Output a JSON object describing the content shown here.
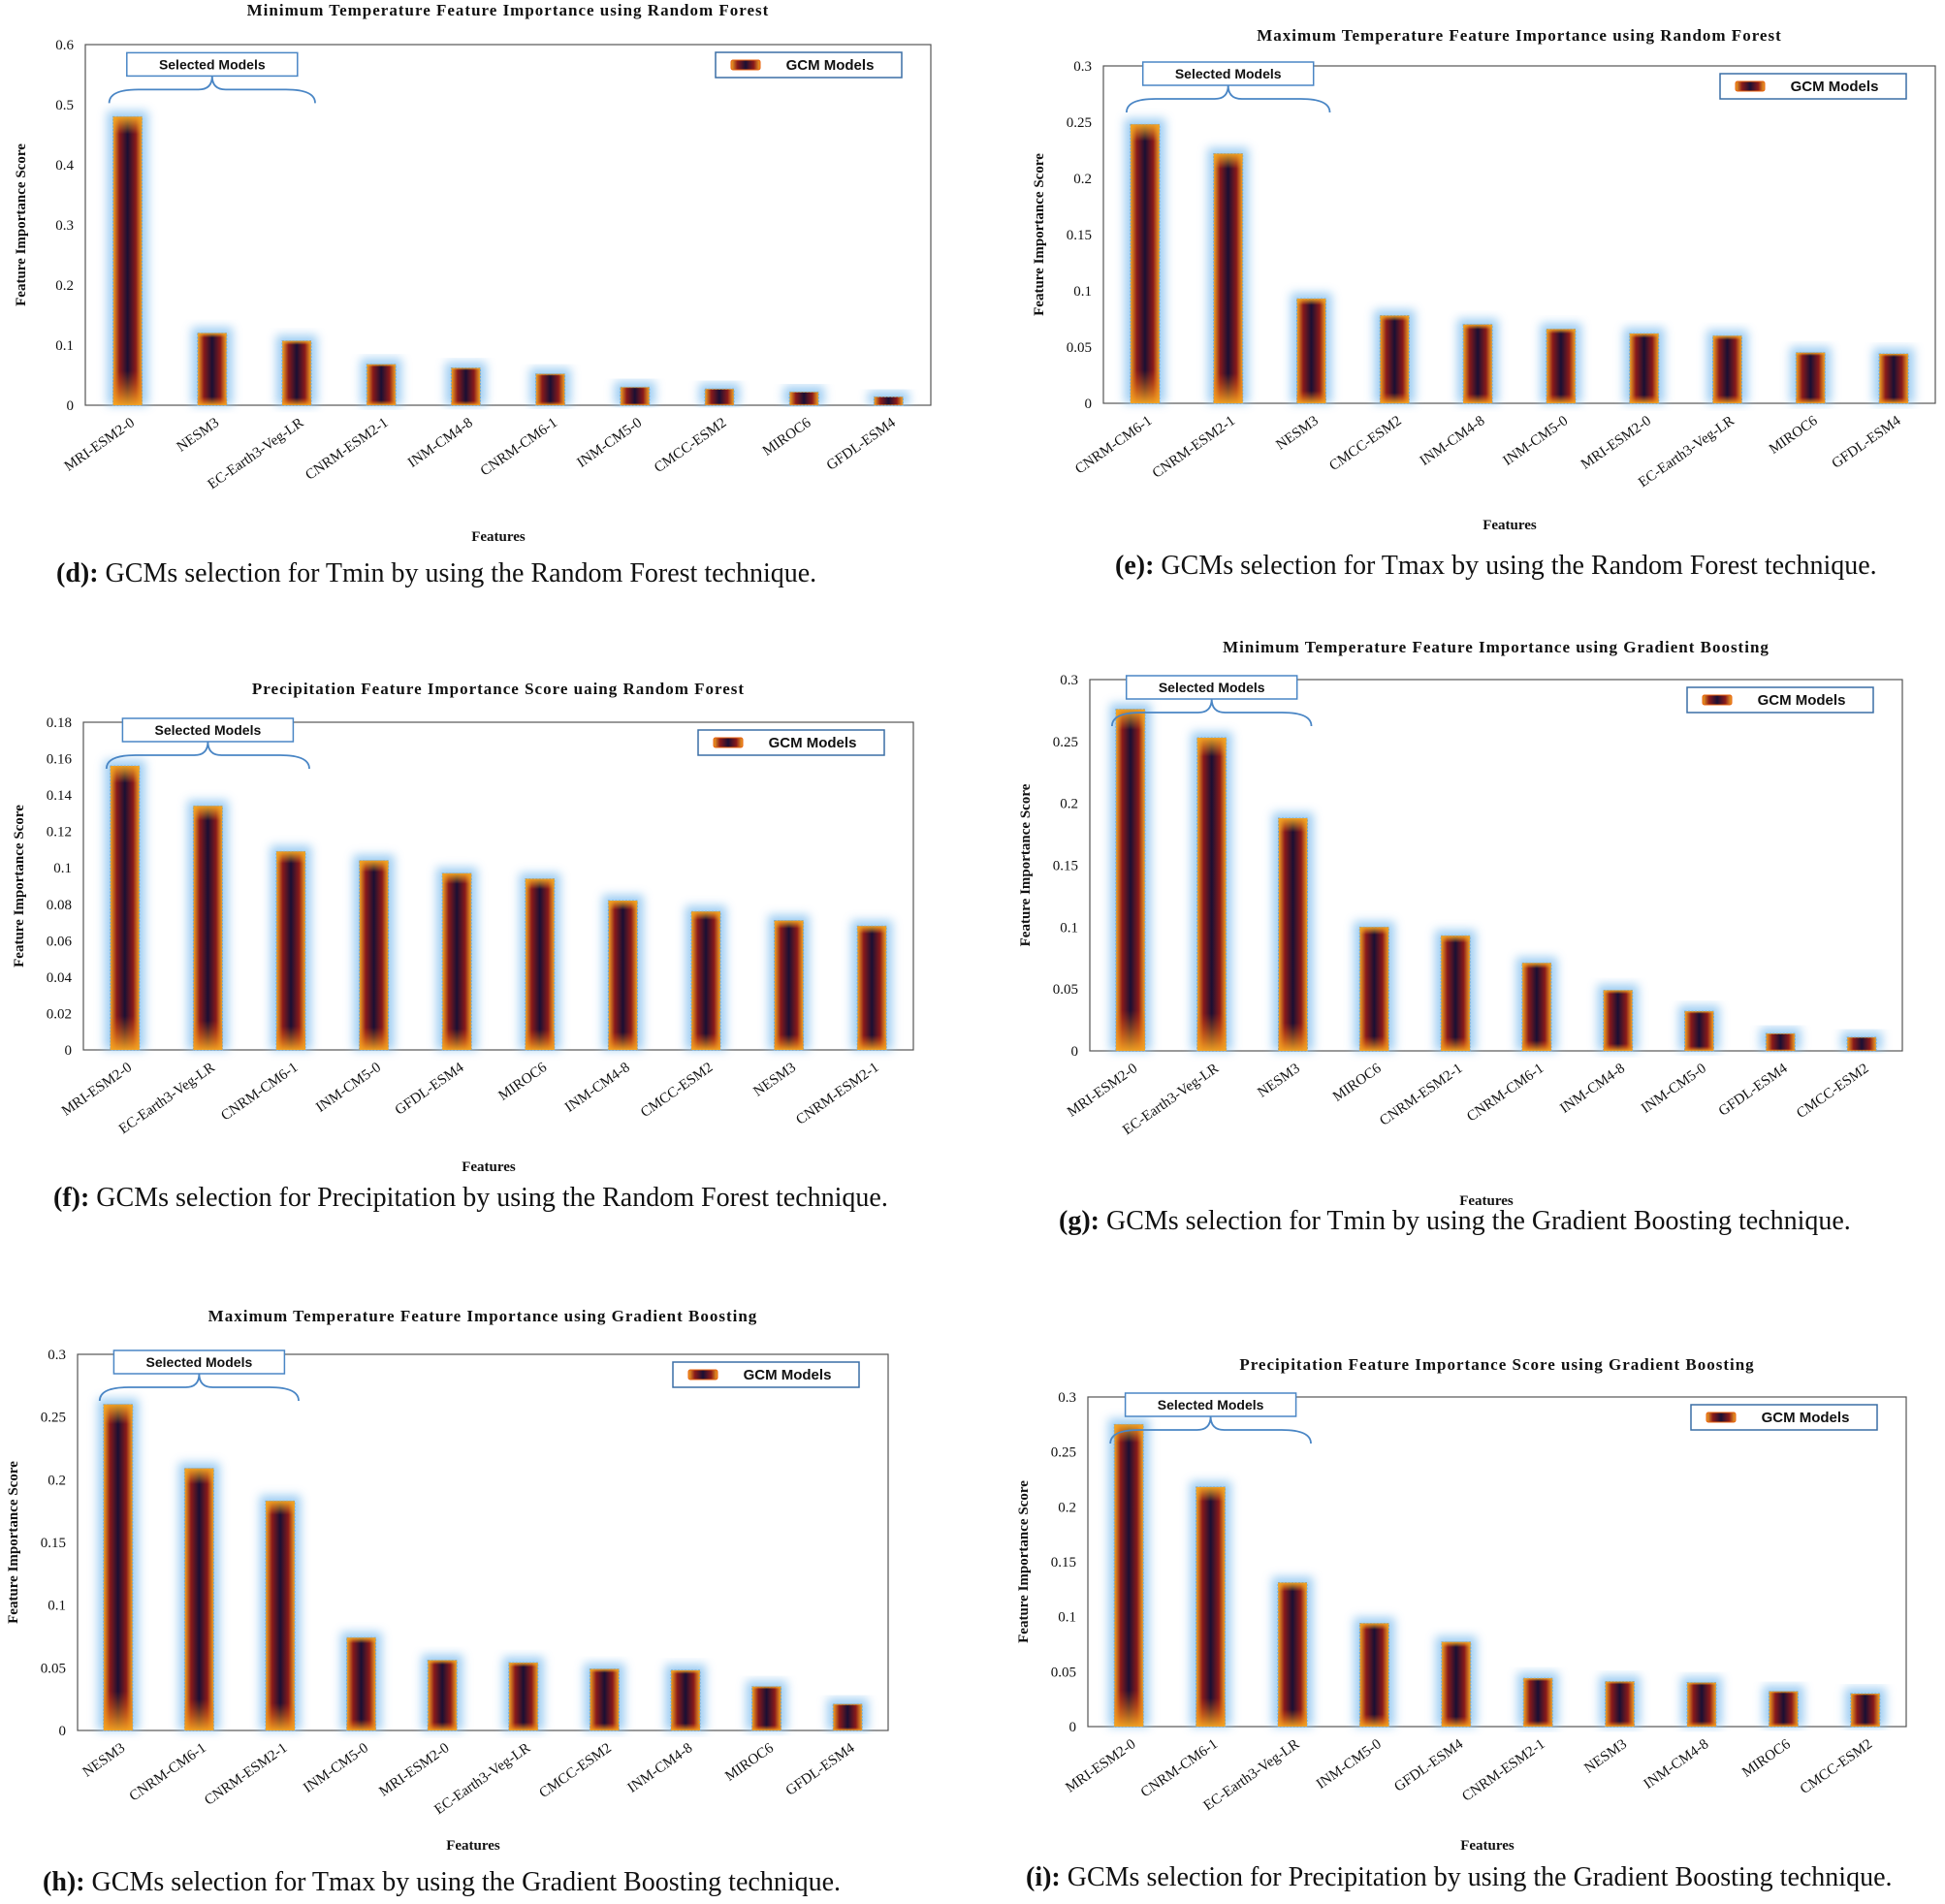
{
  "legend_label": "GCM Models",
  "selected_label": "Selected Models",
  "xlabel": "Features",
  "ylabel": "Feature Importance Score",
  "colors": {
    "bar_top": "#f5a623",
    "bar_mid": "#1a0f33",
    "bar_edge": "#e8600c",
    "glow": "#8ec5f0",
    "legend_border": "#3a6ea5"
  },
  "captions": [
    {
      "letter": "(d):",
      "text": " GCMs selection for Tmin by using the Random Forest technique."
    },
    {
      "letter": "(e):",
      "text": " GCMs selection for Tmax by using the Random Forest technique."
    },
    {
      "letter": "(f):",
      "text": " GCMs selection for Precipitation by using the Random Forest technique."
    },
    {
      "letter": "(g):",
      "text": " GCMs selection for Tmin by using the Gradient Boosting technique."
    },
    {
      "letter": "(h):",
      "text": " GCMs selection for Tmax by using the Gradient Boosting technique."
    },
    {
      "letter": "(i):",
      "text": " GCMs selection for Precipitation by using the Gradient Boosting technique."
    }
  ],
  "chart_data": [
    {
      "type": "bar",
      "title": "Minimum Temperature Feature Importance using Random Forest",
      "xlabel": "Features",
      "ylabel": "Feature Importance Score",
      "categories": [
        "MRI-ESM2-0",
        "NESM3",
        "EC-Earth3-Veg-LR",
        "CNRM-ESM2-1",
        "INM-CM4-8",
        "CNRM-CM6-1",
        "INM-CM5-0",
        "CMCC-ESM2",
        "MIROC6",
        "GFDL-ESM4"
      ],
      "values": [
        0.48,
        0.12,
        0.107,
        0.068,
        0.062,
        0.052,
        0.03,
        0.027,
        0.022,
        0.014
      ],
      "ylim": [
        0,
        0.6
      ],
      "yticks": [
        "0",
        "0.1",
        "0.2",
        "0.3",
        "0.4",
        "0.5",
        "0.6"
      ],
      "legend": "GCM Models",
      "selected_count": 3
    },
    {
      "type": "bar",
      "title": "Maximum Temperature Feature Importance using Random Forest",
      "xlabel": "Features",
      "ylabel": "Feature Importance Score",
      "categories": [
        "CNRM-CM6-1",
        "CNRM-ESM2-1",
        "NESM3",
        "CMCC-ESM2",
        "INM-CM4-8",
        "INM-CM5-0",
        "MRI-ESM2-0",
        "EC-Earth3-Veg-LR",
        "MIROC6",
        "GFDL-ESM4"
      ],
      "values": [
        0.248,
        0.222,
        0.093,
        0.078,
        0.07,
        0.066,
        0.062,
        0.06,
        0.045,
        0.044
      ],
      "ylim": [
        0,
        0.3
      ],
      "yticks": [
        "0",
        "0.05",
        "0.1",
        "0.15",
        "0.2",
        "0.25",
        "0.3"
      ],
      "legend": "GCM Models",
      "selected_count": 3
    },
    {
      "type": "bar",
      "title": "Precipitation Feature Importance Score uaing Random Forest",
      "xlabel": "Features",
      "ylabel": "Feature Importance Score",
      "categories": [
        "MRI-ESM2-0",
        "EC-Earth3-Veg-LR",
        "CNRM-CM6-1",
        "INM-CM5-0",
        "GFDL-ESM4",
        "MIROC6",
        "INM-CM4-8",
        "CMCC-ESM2",
        "NESM3",
        "CNRM-ESM2-1"
      ],
      "values": [
        0.156,
        0.134,
        0.109,
        0.104,
        0.097,
        0.094,
        0.082,
        0.076,
        0.071,
        0.068
      ],
      "ylim": [
        0,
        0.18
      ],
      "yticks": [
        "0",
        "0.02",
        "0.04",
        "0.06",
        "0.08",
        "0.1",
        "0.12",
        "0.14",
        "0.16",
        "0.18"
      ],
      "legend": "GCM Models",
      "selected_count": 3
    },
    {
      "type": "bar",
      "title": "Minimum Temperature Feature Importance using Gradient Boosting",
      "xlabel": "Features",
      "ylabel": "Feature Importance  Score",
      "categories": [
        "MRI-ESM2-0",
        "EC-Earth3-Veg-LR",
        "NESM3",
        "MIROC6",
        "CNRM-ESM2-1",
        "CNRM-CM6-1",
        "INM-CM4-8",
        "INM-CM5-0",
        "GFDL-ESM4",
        "CMCC-ESM2"
      ],
      "values": [
        0.276,
        0.253,
        0.188,
        0.1,
        0.093,
        0.071,
        0.049,
        0.032,
        0.014,
        0.011
      ],
      "ylim": [
        0,
        0.3
      ],
      "yticks": [
        "0",
        "0.05",
        "0.1",
        "0.15",
        "0.2",
        "0.25",
        "0.3"
      ],
      "legend": "GCM Models",
      "selected_count": 3
    },
    {
      "type": "bar",
      "title": "Maximum Temperature Feature Importance using Gradient Boosting",
      "xlabel": "Features",
      "ylabel": "Feature Importance Score",
      "categories": [
        "NESM3",
        "CNRM-CM6-1",
        "CNRM-ESM2-1",
        "INM-CM5-0",
        "MRI-ESM2-0",
        "EC-Earth3-Veg-LR",
        "CMCC-ESM2",
        "INM-CM4-8",
        "MIROC6",
        "GFDL-ESM4"
      ],
      "values": [
        0.26,
        0.209,
        0.183,
        0.074,
        0.056,
        0.054,
        0.049,
        0.048,
        0.035,
        0.021
      ],
      "ylim": [
        0,
        0.3
      ],
      "yticks": [
        "0",
        "0.05",
        "0.1",
        "0.15",
        "0.2",
        "0.25",
        "0.3"
      ],
      "legend": "GCM Models",
      "selected_count": 3
    },
    {
      "type": "bar",
      "title": "Precipitation Feature Importance Score using Gradient Boosting",
      "xlabel": "Features",
      "ylabel": "Feature Importance Score",
      "categories": [
        "MRI-ESM2-0",
        "CNRM-CM6-1",
        "EC-Earth3-Veg-LR",
        "INM-CM5-0",
        "GFDL-ESM4",
        "CNRM-ESM2-1",
        "NESM3",
        "INM-CM4-8",
        "MIROC6",
        "CMCC-ESM2"
      ],
      "values": [
        0.275,
        0.218,
        0.131,
        0.094,
        0.077,
        0.044,
        0.041,
        0.04,
        0.032,
        0.03
      ],
      "ylim": [
        0,
        0.3
      ],
      "yticks": [
        "0",
        "0.05",
        "0.1",
        "0.15",
        "0.2",
        "0.25",
        "0.3"
      ],
      "legend": "GCM Models",
      "selected_count": 3
    }
  ]
}
